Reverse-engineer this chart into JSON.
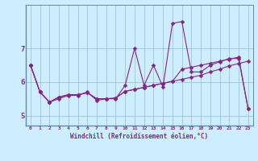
{
  "xlabel": "Windchill (Refroidissement éolien,°C)",
  "x": [
    0,
    1,
    2,
    3,
    4,
    5,
    6,
    7,
    8,
    9,
    10,
    11,
    12,
    13,
    14,
    15,
    16,
    17,
    18,
    19,
    20,
    21,
    22,
    23
  ],
  "line1": [
    6.5,
    5.7,
    5.4,
    5.5,
    5.6,
    5.6,
    5.7,
    5.45,
    5.5,
    5.5,
    5.9,
    7.0,
    5.9,
    6.5,
    5.85,
    7.75,
    7.8,
    6.3,
    6.3,
    6.5,
    6.6,
    6.7,
    6.7,
    5.2
  ],
  "line2": [
    6.5,
    5.7,
    5.4,
    5.55,
    5.62,
    5.62,
    5.68,
    5.5,
    5.5,
    5.52,
    5.72,
    5.78,
    5.84,
    5.9,
    5.96,
    6.02,
    6.08,
    6.14,
    6.2,
    6.3,
    6.38,
    6.48,
    6.55,
    6.62
  ],
  "line3": [
    6.5,
    5.7,
    5.4,
    5.55,
    5.62,
    5.62,
    5.68,
    5.5,
    5.5,
    5.52,
    5.72,
    5.78,
    5.84,
    5.9,
    5.96,
    6.02,
    6.38,
    6.44,
    6.5,
    6.56,
    6.62,
    6.68,
    6.74,
    5.2
  ],
  "ylim": [
    4.7,
    8.3
  ],
  "yticks": [
    5,
    6,
    7
  ],
  "bg_color": "#cceeff",
  "line_color": "#882288",
  "grid_color": "#99bbcc",
  "spine_color": "#6688aa"
}
